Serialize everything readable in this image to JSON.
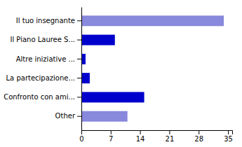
{
  "chart_data": {
    "type": "bar",
    "orientation": "horizontal",
    "categories": [
      "Il tuo insegnante",
      "Il Piano Lauree S...",
      "Altre iniziative ...",
      "La partecipazione...",
      "Confronto con ami...",
      "Other"
    ],
    "values": [
      34,
      8,
      1,
      2,
      15,
      11
    ],
    "colors": [
      "#8888dd",
      "#0000cc",
      "#0000cc",
      "#0000cc",
      "#0000cc",
      "#8888dd"
    ],
    "xlim": [
      0,
      36
    ],
    "xticks": [
      0,
      7,
      14,
      21,
      28,
      35
    ],
    "grid": false
  }
}
